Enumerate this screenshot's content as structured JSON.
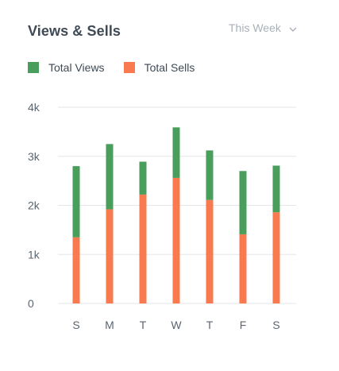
{
  "header": {
    "title": "Views & Sells",
    "range_label": "This Week"
  },
  "colors": {
    "views": "#4a9e5c",
    "sells": "#fa7a4f",
    "grid": "#e3e6ea",
    "text": "#3f4a55"
  },
  "icons": {
    "range_toggle": "chevron-down-icon"
  },
  "chart_data": {
    "type": "bar",
    "stacked": true,
    "categories": [
      "S",
      "M",
      "T",
      "W",
      "T",
      "F",
      "S"
    ],
    "series": [
      {
        "name": "Total Views",
        "values": [
          1450,
          1330,
          670,
          1030,
          1010,
          1290,
          950
        ]
      },
      {
        "name": "Total Sells",
        "values": [
          1350,
          1920,
          2220,
          2560,
          2110,
          1410,
          1860
        ]
      }
    ],
    "totals": [
      2800,
      3250,
      2890,
      3590,
      3120,
      2700,
      2810
    ],
    "ylim": [
      0,
      4000
    ],
    "yticks": [
      {
        "value": 0,
        "label": "0"
      },
      {
        "value": 1000,
        "label": "1k"
      },
      {
        "value": 2000,
        "label": "2k"
      },
      {
        "value": 3000,
        "label": "3k"
      },
      {
        "value": 4000,
        "label": "4k"
      }
    ],
    "grid": true,
    "legend_position": "top-left",
    "xlabel": "",
    "ylabel": ""
  }
}
